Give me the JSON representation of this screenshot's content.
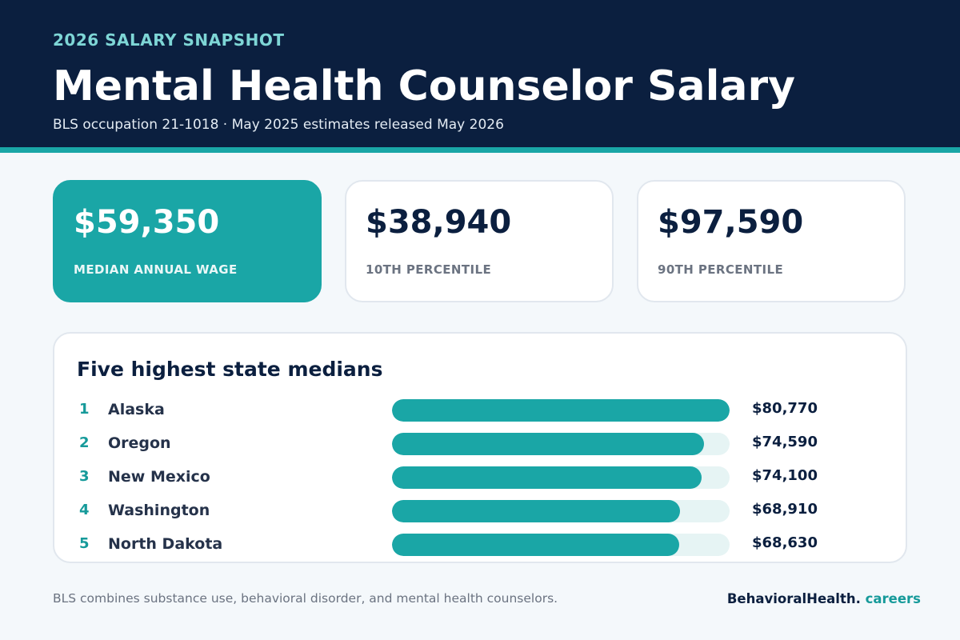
{
  "header": {
    "eyebrow": "2026 SALARY SNAPSHOT",
    "title": "Mental Health Counselor Salary",
    "subtitle": "BLS occupation 21-1018 · May 2025 estimates released May 2026"
  },
  "stats": [
    {
      "value": "$59,350",
      "label": "MEDIAN ANNUAL WAGE"
    },
    {
      "value": "$38,940",
      "label": "10TH PERCENTILE"
    },
    {
      "value": "$97,590",
      "label": "90TH PERCENTILE"
    }
  ],
  "chart_data": {
    "type": "bar",
    "orientation": "horizontal",
    "title": "Five highest state medians",
    "ranks": [
      "1",
      "2",
      "3",
      "4",
      "5"
    ],
    "categories": [
      "Alaska",
      "Oregon",
      "New Mexico",
      "Washington",
      "North Dakota"
    ],
    "values": [
      80770,
      74590,
      74100,
      68910,
      68630
    ],
    "value_labels": [
      "$80,770",
      "$74,590",
      "$74,100",
      "$68,910",
      "$68,630"
    ],
    "xlim": [
      0,
      80770
    ],
    "grid": false,
    "colors": {
      "bar": "#1aa6a6",
      "track": "#e6f4f4"
    }
  },
  "footer": {
    "note": "BLS combines substance use, behavioral disorder, and mental health counselors.",
    "brand_main": "BehavioralHealth.",
    "brand_accent": "careers"
  }
}
